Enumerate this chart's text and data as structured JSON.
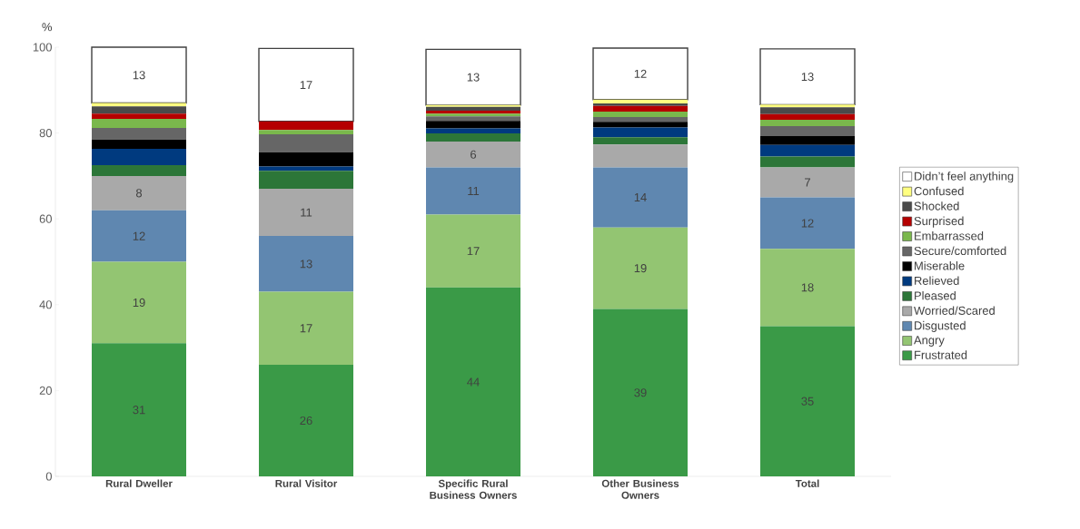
{
  "chart_data": {
    "type": "bar",
    "stacked": true,
    "ylabel": "%",
    "categories": [
      "Rural Dweller",
      "Rural Visitor",
      "Specific Rural Business Owners",
      "Other Business Owners",
      "Total"
    ],
    "ylim": [
      0,
      100
    ],
    "yticks": [
      0,
      20,
      40,
      60,
      80,
      100
    ],
    "grid": false,
    "legend": "right",
    "series": [
      {
        "name": "Frustrated",
        "color": "#3a9a47",
        "values": [
          31,
          26,
          44,
          39,
          35
        ],
        "value_labels": [
          "31",
          "26",
          "44",
          "39",
          "35"
        ]
      },
      {
        "name": "Angry",
        "color": "#93c572",
        "values": [
          19,
          17,
          17,
          19,
          18
        ],
        "value_labels": [
          "19",
          "17",
          "17",
          "19",
          "18"
        ]
      },
      {
        "name": "Disgusted",
        "color": "#5f87b0",
        "values": [
          12,
          13,
          11,
          14,
          12
        ],
        "value_labels": [
          "12",
          "13",
          "11",
          "14",
          "12"
        ]
      },
      {
        "name": "Worried/Scared",
        "color": "#a9a9a9",
        "values": [
          8,
          11,
          6,
          5.3,
          7
        ],
        "value_labels": [
          "8",
          "11",
          "6",
          null,
          "7"
        ]
      },
      {
        "name": "Pleased",
        "color": "#2c7638",
        "values": [
          2.5,
          4.2,
          1.9,
          1.7,
          2.5
        ]
      },
      {
        "name": "Relieved",
        "color": "#003a7f",
        "values": [
          3.8,
          1.0,
          1.2,
          2.3,
          2.7
        ]
      },
      {
        "name": "Miserable",
        "color": "#000000",
        "values": [
          2.2,
          3.3,
          1.7,
          1.3,
          2.1
        ]
      },
      {
        "name": "Secure/comforted",
        "color": "#666666",
        "values": [
          2.7,
          4.2,
          1.1,
          1.1,
          2.3
        ]
      },
      {
        "name": "Embarrassed",
        "color": "#7ab84c",
        "values": [
          2.1,
          1.0,
          0.6,
          1.3,
          1.5
        ]
      },
      {
        "name": "Surprised",
        "color": "#b50000",
        "values": [
          1.2,
          2.0,
          0.7,
          1.3,
          1.3
        ]
      },
      {
        "name": "Shocked",
        "color": "#4a4a4a",
        "values": [
          1.7,
          0,
          0.9,
          0.6,
          1.6
        ]
      },
      {
        "name": "Confused",
        "color": "#ffff80",
        "values": [
          0.8,
          0,
          0.4,
          0.9,
          0.6
        ]
      },
      {
        "name": "Didn’t feel anything",
        "color": "#ffffff",
        "values": [
          13,
          17,
          13,
          12,
          13
        ],
        "value_labels": [
          "13",
          "17",
          "13",
          "12",
          "13"
        ]
      }
    ]
  }
}
